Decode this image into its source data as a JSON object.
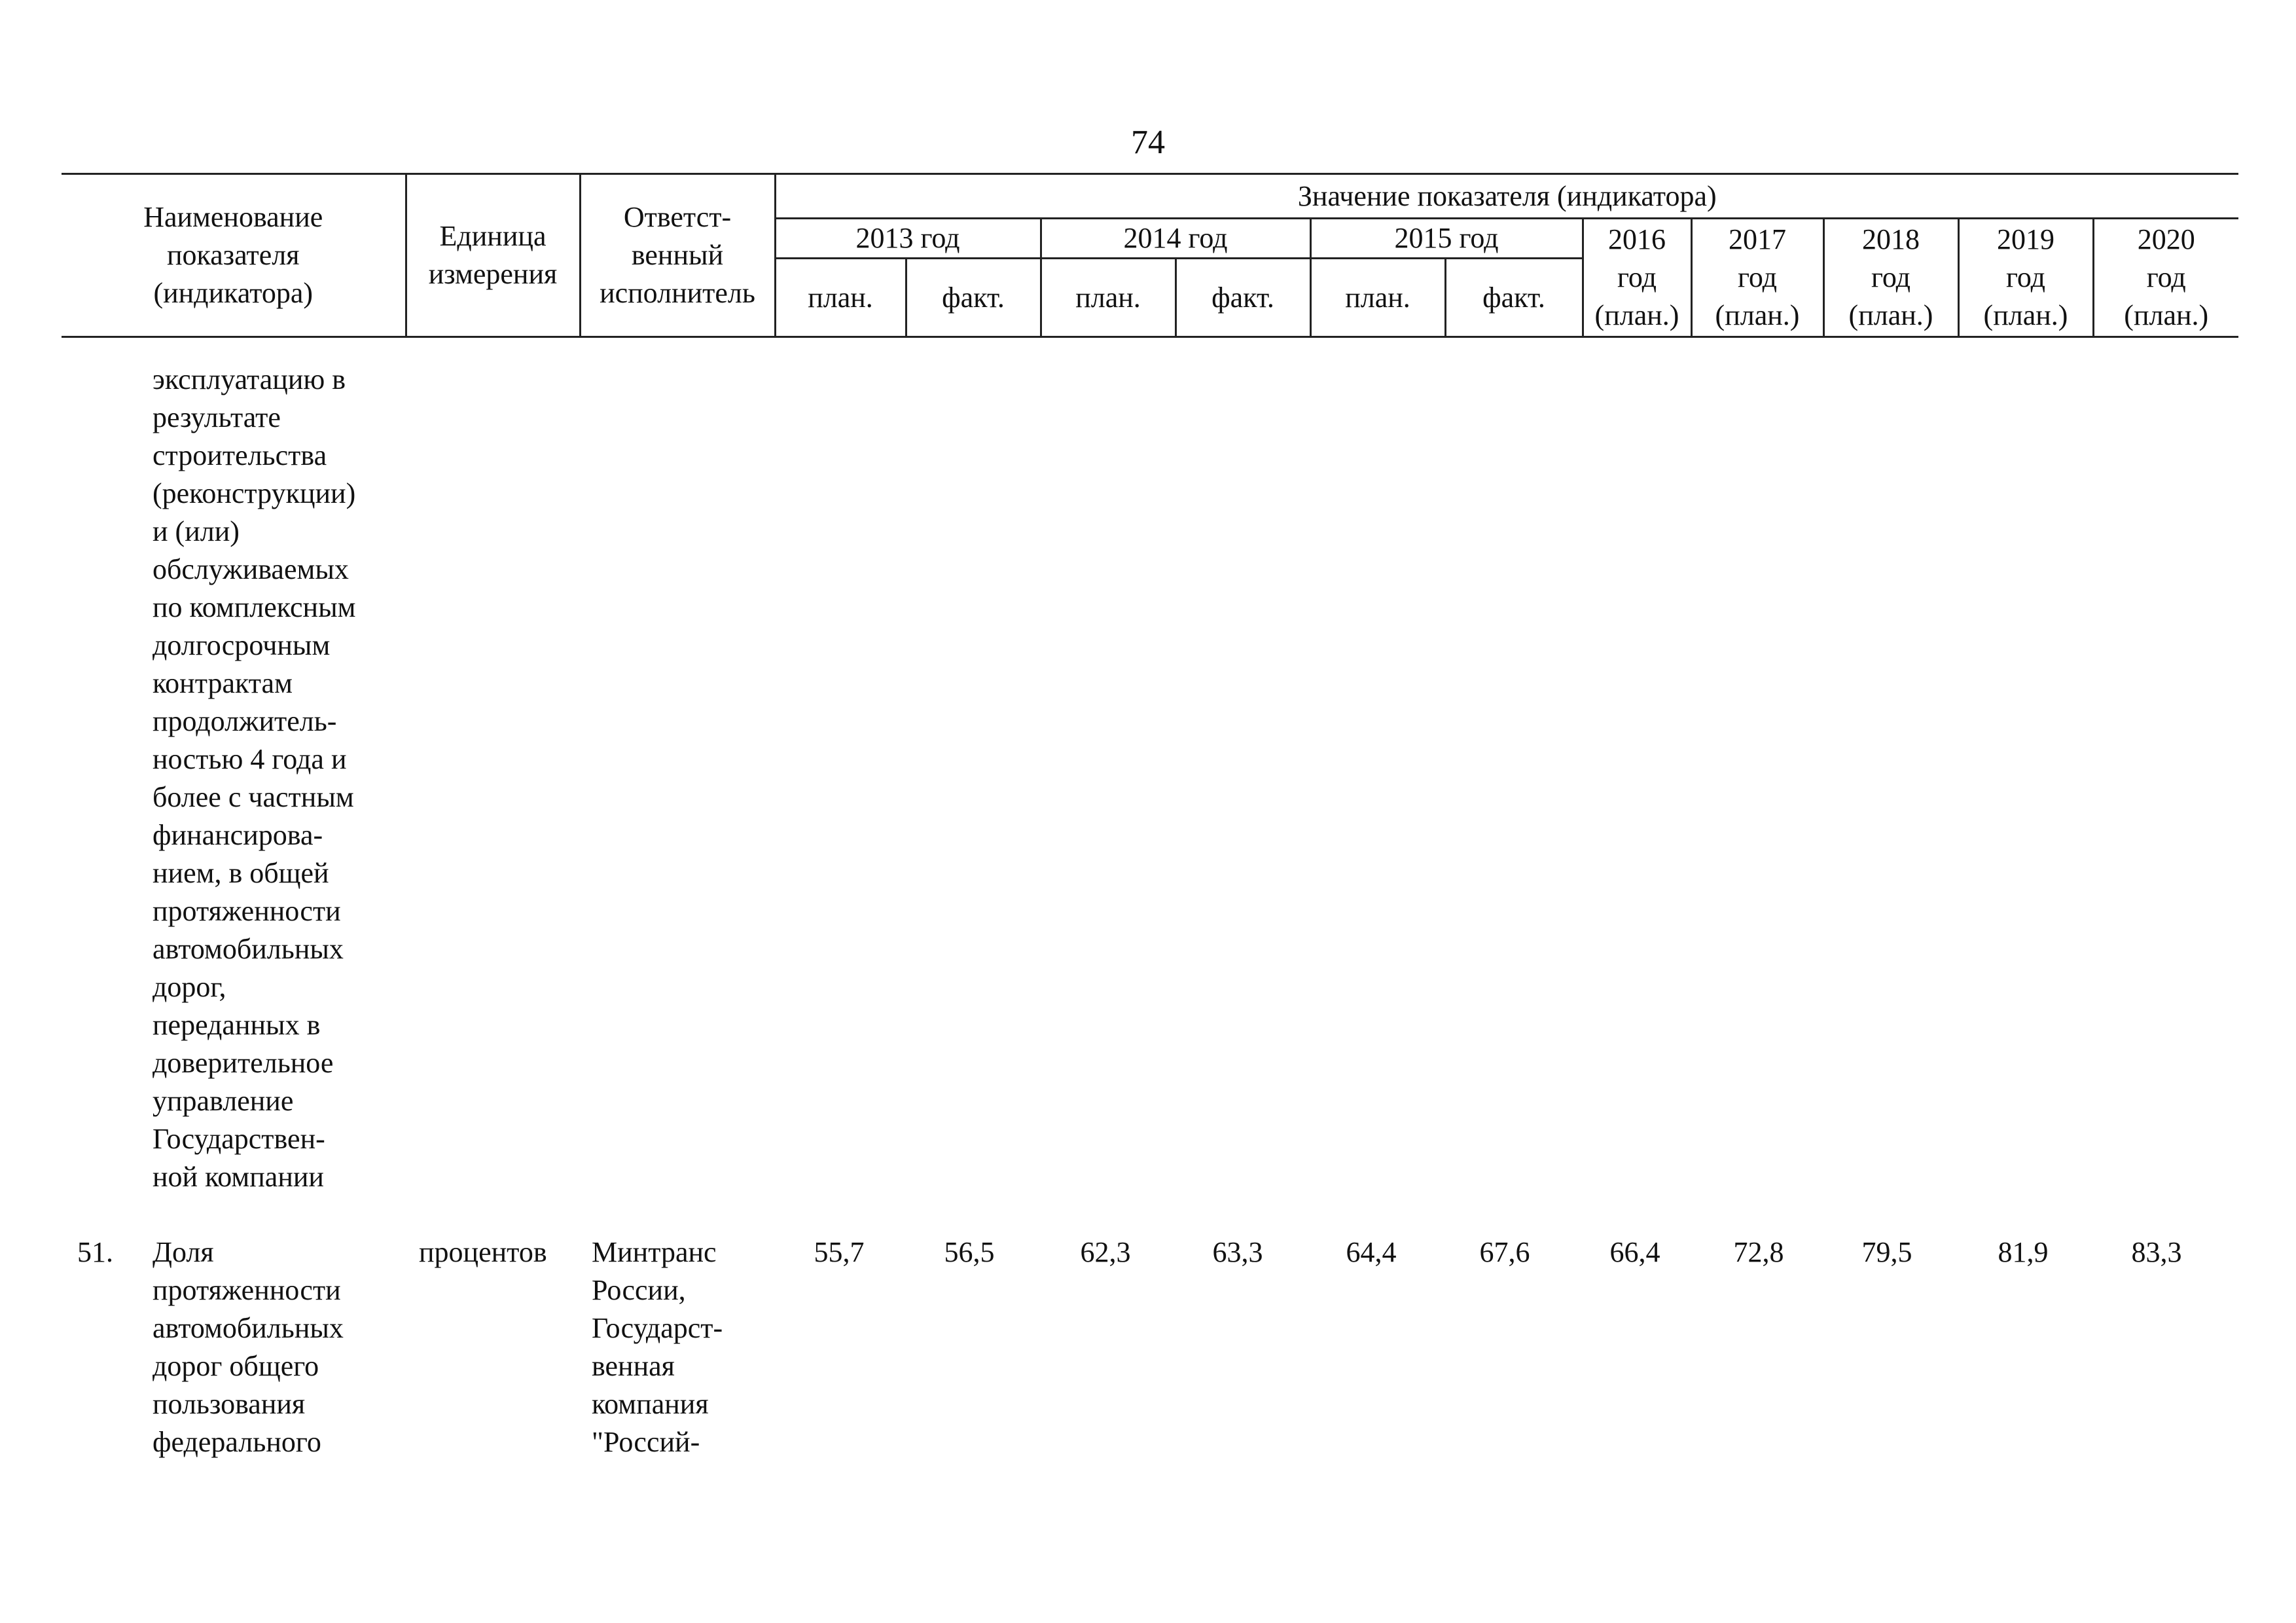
{
  "page_number": "74",
  "header": {
    "name_col": "Наименование\nпоказателя\n(индикатора)",
    "unit_col": "Единица\nизмерения",
    "executor_col": "Ответст-\nвенный\nисполнитель",
    "values_group": "Значение показателя (индикатора)",
    "year_2013": "2013 год",
    "year_2014": "2014 год",
    "year_2015": "2015 год",
    "year_2016": "2016\nгод\n(план.)",
    "year_2017": "2017\nгод\n(план.)",
    "year_2018": "2018\nгод\n(план.)",
    "year_2019": "2019\nгод\n(план.)",
    "year_2020": "2020\nгод\n(план.)",
    "plan": "план.",
    "fact": "факт."
  },
  "continuation": {
    "name": "эксплуатацию в\nрезультате\nстроительства\n(реконструкции)\nи (или)\nобслуживаемых\nпо комплексным\nдолгосрочным\nконтрактам\nпродолжитель-\nностью 4 года и\nболее с частным\nфинансирова-\nнием, в общей\nпротяженности\nавтомобильных\nдорог,\nпереданных в\nдоверительное\nуправление\nГосударствен-\nной компании"
  },
  "row_51": {
    "number": "51.",
    "name": "Доля\nпротяженности\nавтомобильных\nдорог общего\nпользования\nфедерального",
    "unit": "процентов",
    "executor": "Минтранс\nРоссии,\nГосударст-\nвенная\nкомпания\n\"Россий-",
    "values": {
      "y2013_plan": "55,7",
      "y2013_fact": "56,5",
      "y2014_plan": "62,3",
      "y2014_fact": "63,3",
      "y2015_plan": "64,4",
      "y2015_fact": "67,6",
      "y2016_plan": "66,4",
      "y2017_plan": "72,8",
      "y2018_plan": "79,5",
      "y2019_plan": "81,9",
      "y2020_plan": "83,3"
    }
  }
}
